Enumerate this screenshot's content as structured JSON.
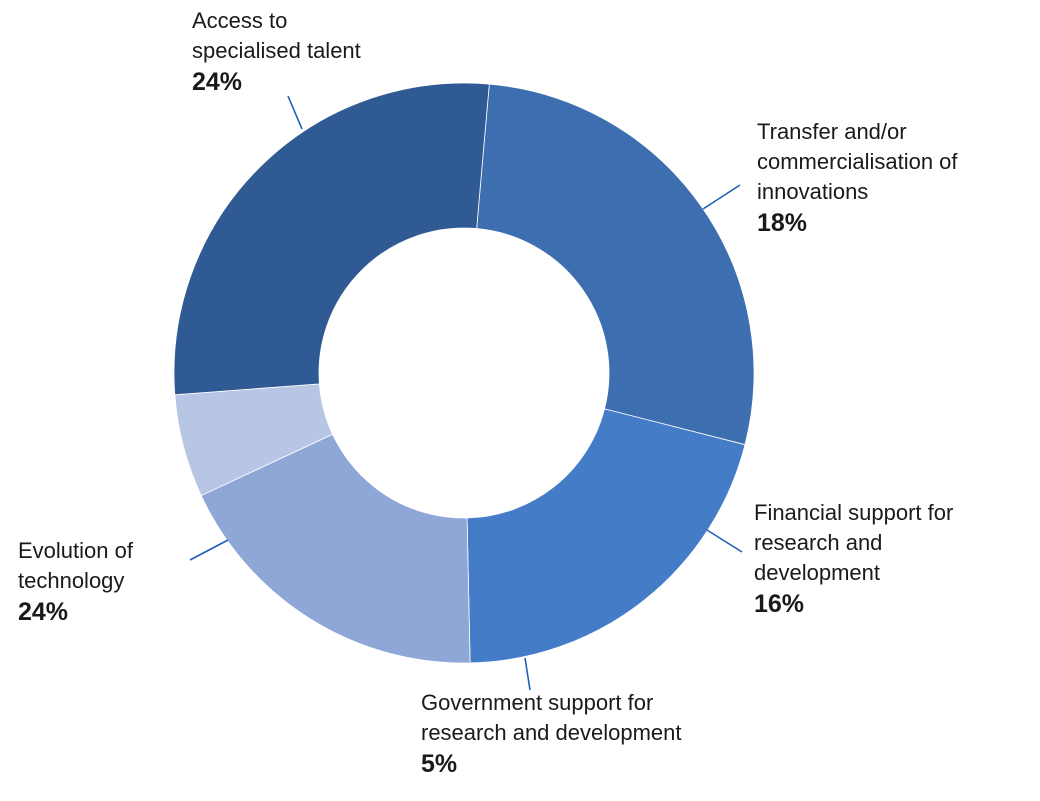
{
  "chart_data": {
    "type": "pie",
    "donut": true,
    "categories": [
      "Access to specialised talent",
      "Transfer and/or commercialisation of innovations",
      "Financial support for research and development",
      "Government support for research and development",
      "Evolution of technology"
    ],
    "values": [
      24,
      18,
      16,
      5,
      24
    ],
    "value_labels": [
      "24%",
      "18%",
      "16%",
      "5%",
      "24%"
    ],
    "label_lines": [
      "Access to\nspecialised talent",
      "Transfer and/or\ncommercialisation of\ninnovations",
      "Financial support for\nresearch and\ndevelopment",
      "Government support for\nresearch and development",
      "Evolution of\ntechnology"
    ],
    "colors": [
      "#3d6eb0",
      "#447cc8",
      "#8fa7d6",
      "#b8c6e6",
      "#305a94"
    ],
    "leader_color": "#1f5fb8",
    "title": "",
    "legend": "none"
  }
}
